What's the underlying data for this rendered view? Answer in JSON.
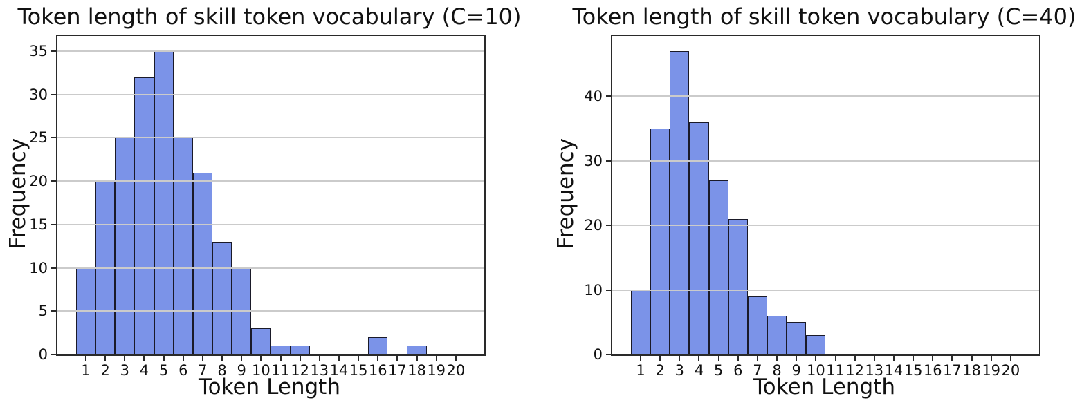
{
  "page": {
    "background": "#ffffff",
    "text_color": "#111111"
  },
  "chart_data": [
    {
      "type": "bar",
      "title": "Token length of skill token vocabulary (C=10)",
      "xlabel": "Token Length",
      "ylabel": "Frequency",
      "categories": [
        1,
        2,
        3,
        4,
        5,
        6,
        7,
        8,
        9,
        10,
        11,
        12,
        13,
        14,
        15,
        16,
        17,
        18,
        19,
        20
      ],
      "values": [
        10,
        20,
        25,
        32,
        35,
        25,
        21,
        13,
        10,
        3,
        1,
        1,
        0,
        0,
        0,
        2,
        0,
        1,
        0,
        0
      ],
      "yticks": [
        0,
        5,
        10,
        15,
        20,
        25,
        30,
        35
      ],
      "ylim": [
        0,
        36.75
      ],
      "xlim": [
        -0.45,
        21.45
      ],
      "grid": "horizontal-above-bars",
      "legend": "none",
      "bar_color": "#7b93e8",
      "bar_edge_color": "#1a1a28",
      "gridline_color": "#cbcbcb"
    },
    {
      "type": "bar",
      "title": "Token length of skill token vocabulary (C=40)",
      "xlabel": "Token Length",
      "ylabel": "Frequency",
      "categories": [
        1,
        2,
        3,
        4,
        5,
        6,
        7,
        8,
        9,
        10,
        11,
        12,
        13,
        14,
        15,
        16,
        17,
        18,
        19,
        20
      ],
      "values": [
        10,
        35,
        47,
        36,
        27,
        21,
        9,
        6,
        5,
        3,
        0,
        0,
        0,
        0,
        0,
        0,
        0,
        0,
        0,
        0
      ],
      "yticks": [
        0,
        10,
        20,
        30,
        40
      ],
      "ylim": [
        0,
        49.35
      ],
      "xlim": [
        -0.45,
        21.45
      ],
      "grid": "horizontal-above-bars",
      "legend": "none",
      "bar_color": "#7b93e8",
      "bar_edge_color": "#1a1a28",
      "gridline_color": "#cbcbcb"
    }
  ]
}
